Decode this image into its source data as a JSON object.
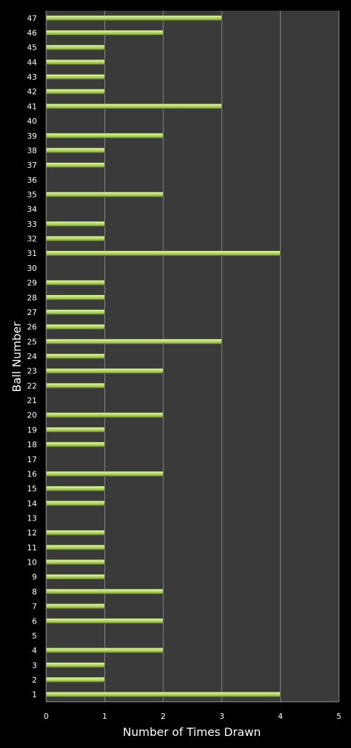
{
  "chart_data": {
    "type": "bar",
    "orientation": "horizontal",
    "categories": [
      "1",
      "2",
      "3",
      "4",
      "5",
      "6",
      "7",
      "8",
      "9",
      "10",
      "11",
      "12",
      "13",
      "14",
      "15",
      "16",
      "17",
      "18",
      "19",
      "20",
      "21",
      "22",
      "23",
      "24",
      "25",
      "26",
      "27",
      "28",
      "29",
      "30",
      "31",
      "32",
      "33",
      "34",
      "35",
      "36",
      "37",
      "38",
      "39",
      "40",
      "41",
      "42",
      "43",
      "44",
      "45",
      "46",
      "47"
    ],
    "values": [
      4,
      1,
      1,
      2,
      0,
      2,
      1,
      2,
      1,
      1,
      1,
      1,
      0,
      1,
      1,
      2,
      0,
      1,
      1,
      2,
      0,
      1,
      2,
      1,
      3,
      1,
      1,
      1,
      1,
      0,
      4,
      1,
      1,
      0,
      2,
      0,
      1,
      1,
      2,
      0,
      3,
      1,
      1,
      1,
      1,
      2,
      3
    ],
    "xlabel": "Number of Times Drawn",
    "ylabel": "Ball Number",
    "xlim": [
      0,
      5
    ],
    "xticks": [
      "0",
      "1",
      "2",
      "3",
      "4",
      "5"
    ],
    "grid": true,
    "legend": "none",
    "colors": {
      "background": "#000000",
      "plot_area": "#3a3a3a",
      "gridline": "#8a8a8a",
      "bar_light": "#d2ec92",
      "bar_mid": "#a4c85a",
      "bar_dark": "#5e7a22",
      "text": "#ffffff"
    }
  }
}
